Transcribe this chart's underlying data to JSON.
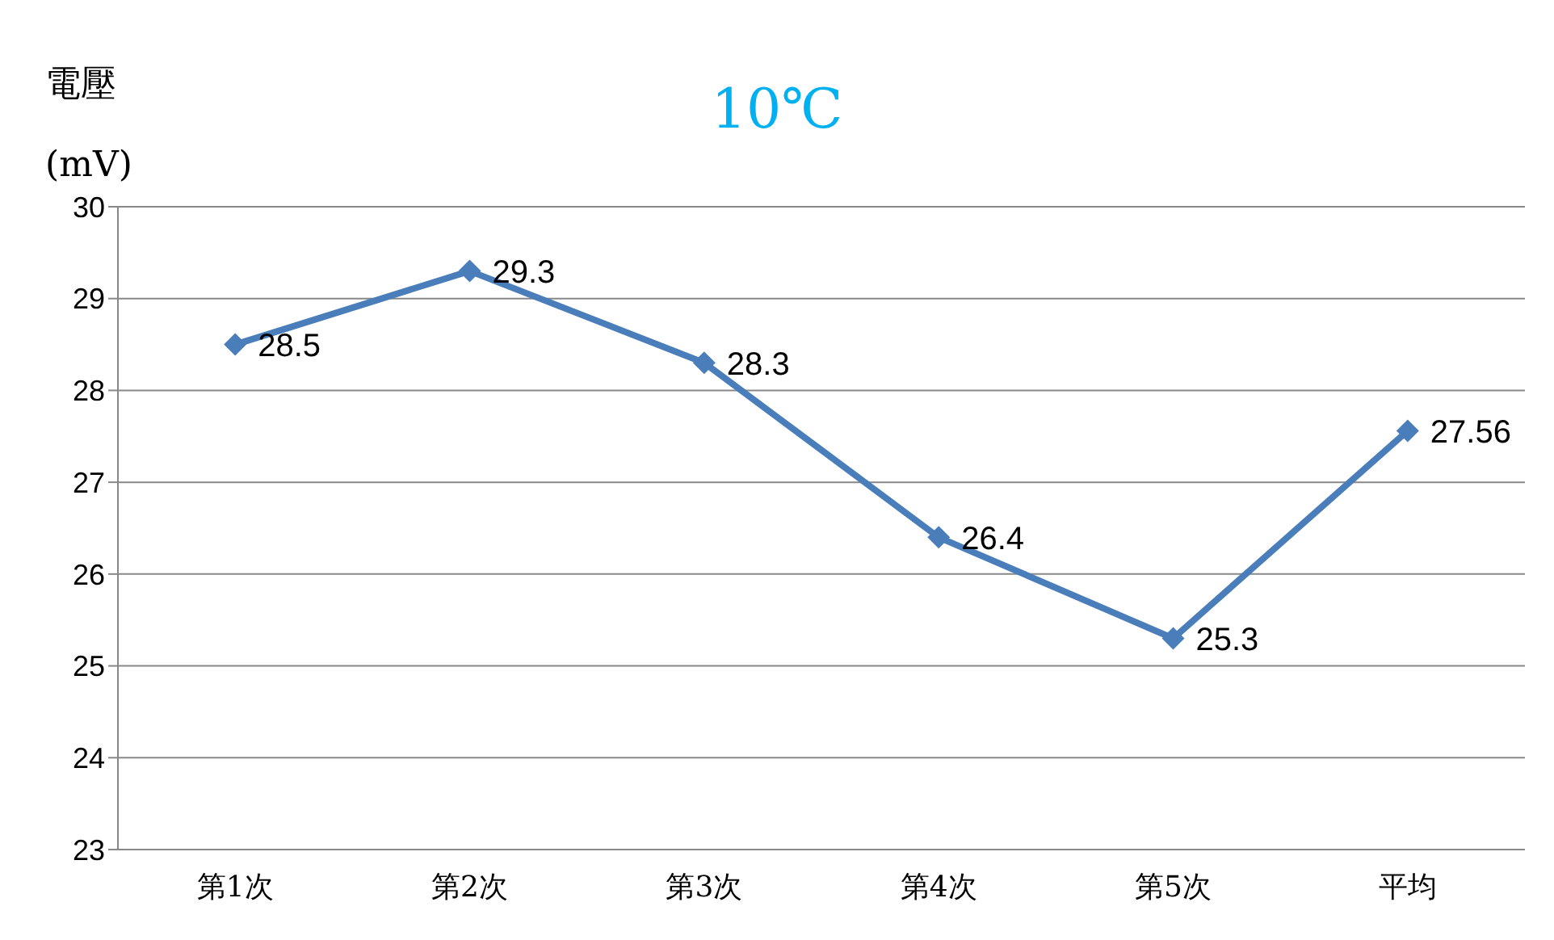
{
  "chart_data": {
    "type": "line",
    "title": "10℃",
    "ylabel": "電壓\n(mV)",
    "categories": [
      "第1次",
      "第2次",
      "第3次",
      "第4次",
      "第5次",
      "平均"
    ],
    "series": [
      {
        "color": "#4a7ebb",
        "values": [
          28.5,
          29.3,
          28.3,
          26.4,
          25.3,
          27.56
        ]
      }
    ],
    "ylim": [
      23,
      30
    ],
    "yticks": [
      23,
      24,
      25,
      26,
      27,
      28,
      29,
      30
    ],
    "grid": "y",
    "marker": "diamond",
    "line_style": "solid",
    "data_labels": true
  }
}
